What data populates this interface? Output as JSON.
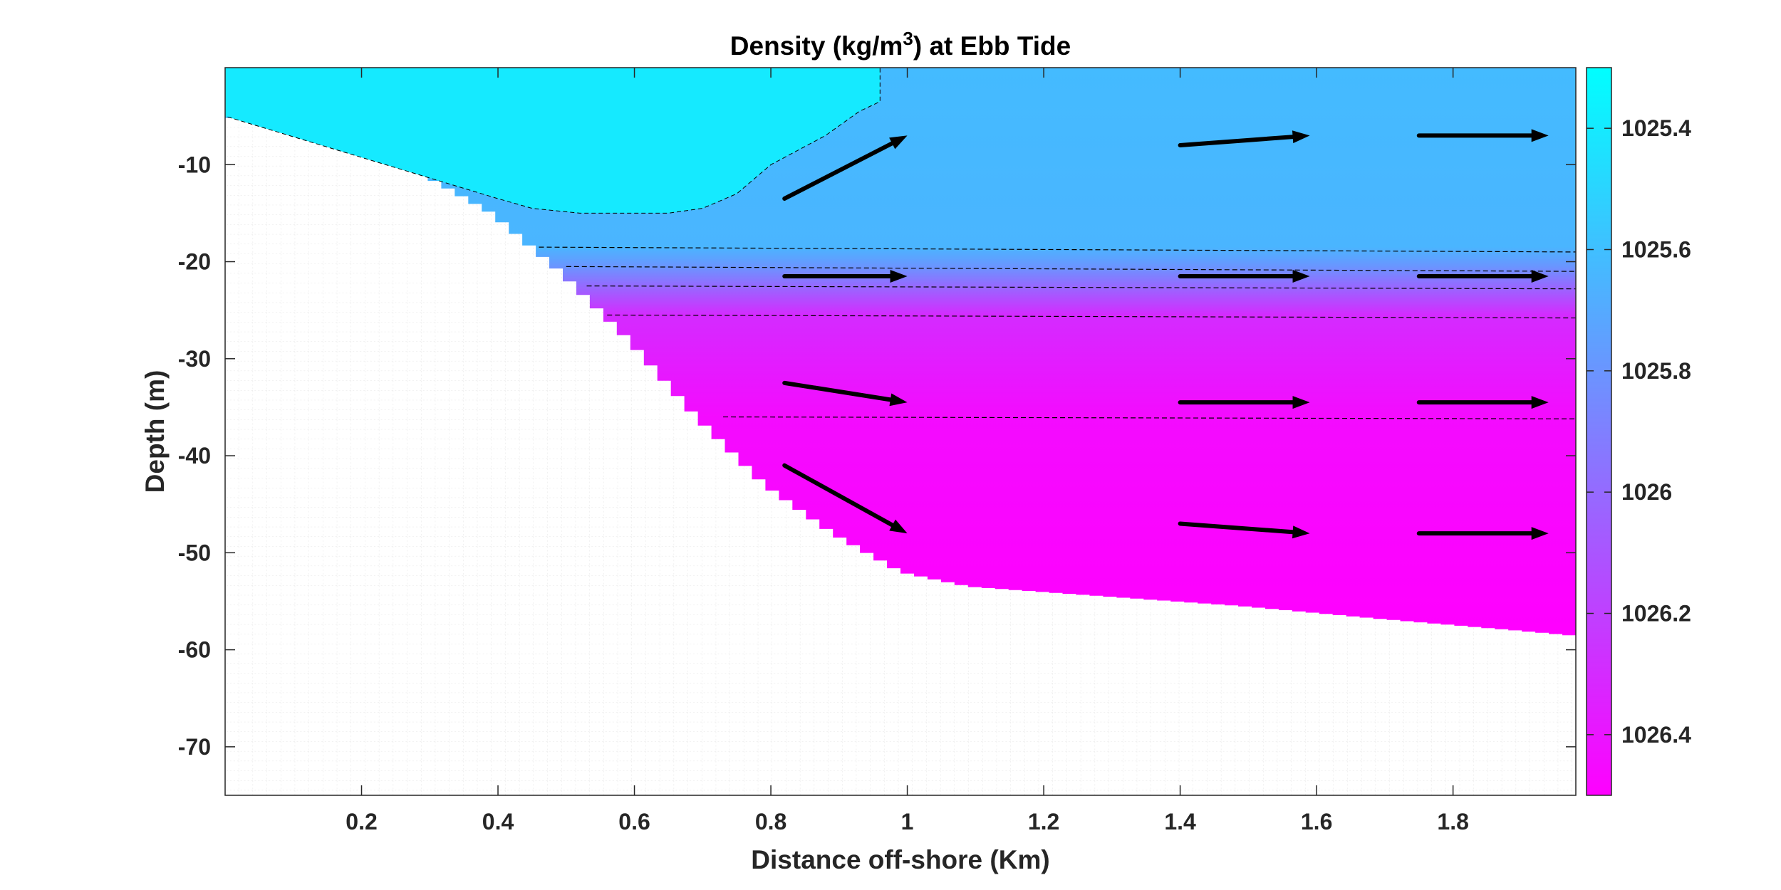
{
  "chart_data": {
    "type": "heatmap",
    "title": "Density (kg/m",
    "title_superscript": "3",
    "title_suffix": ") at Ebb Tide",
    "xlabel": "Distance off-shore (Km)",
    "ylabel": "Depth (m)",
    "xlim": [
      0,
      1.98
    ],
    "ylim": [
      -75,
      0
    ],
    "x_ticks": [
      0.2,
      0.4,
      0.6,
      0.8,
      1,
      1.2,
      1.4,
      1.6,
      1.8
    ],
    "x_tick_labels": [
      "0.2",
      "0.4",
      "0.6",
      "0.8",
      "1",
      "1.2",
      "1.4",
      "1.6",
      "1.8"
    ],
    "y_ticks": [
      -10,
      -20,
      -30,
      -40,
      -50,
      -60,
      -70
    ],
    "y_tick_labels": [
      "-10",
      "-20",
      "-30",
      "-40",
      "-50",
      "-60",
      "-70"
    ],
    "grid": "minor dotted",
    "colorbar": {
      "range": [
        1025.3,
        1026.5
      ],
      "ticks": [
        1025.4,
        1025.6,
        1025.8,
        1026,
        1026.2,
        1026.4
      ],
      "tick_labels": [
        "1025.4",
        "1025.6",
        "1025.8",
        "1026",
        "1026.2",
        "1026.4"
      ],
      "colormap": [
        "#00ffff",
        "#ff00ff"
      ]
    },
    "seafloor_depth": [
      {
        "x": 0.0,
        "depth": -5
      },
      {
        "x": 0.1,
        "depth": -6
      },
      {
        "x": 0.2,
        "depth": -8
      },
      {
        "x": 0.3,
        "depth": -11
      },
      {
        "x": 0.4,
        "depth": -15
      },
      {
        "x": 0.5,
        "depth": -21
      },
      {
        "x": 0.6,
        "depth": -28
      },
      {
        "x": 0.7,
        "depth": -36
      },
      {
        "x": 0.8,
        "depth": -43
      },
      {
        "x": 0.9,
        "depth": -48
      },
      {
        "x": 1.0,
        "depth": -52
      },
      {
        "x": 1.1,
        "depth": -53.5
      },
      {
        "x": 1.3,
        "depth": -54.5
      },
      {
        "x": 1.5,
        "depth": -55.5
      },
      {
        "x": 1.7,
        "depth": -56.8
      },
      {
        "x": 1.9,
        "depth": -58
      },
      {
        "x": 1.98,
        "depth": -58.5
      }
    ],
    "surface_water": {
      "density": 1025.4,
      "outline": [
        {
          "x": 0.0,
          "depth": 0
        },
        {
          "x": 0.96,
          "depth": 0
        },
        {
          "x": 0.96,
          "depth": -3.5
        },
        {
          "x": 0.93,
          "depth": -4.5
        },
        {
          "x": 0.88,
          "depth": -7
        },
        {
          "x": 0.8,
          "depth": -10
        },
        {
          "x": 0.75,
          "depth": -13
        },
        {
          "x": 0.7,
          "depth": -14.5
        },
        {
          "x": 0.65,
          "depth": -15
        },
        {
          "x": 0.52,
          "depth": -15
        },
        {
          "x": 0.45,
          "depth": -14.5
        },
        {
          "x": 0.4,
          "depth": -13.5
        }
      ]
    },
    "density_profile": [
      {
        "depth": -18.5,
        "density": 1025.65
      },
      {
        "depth": -20.5,
        "density": 1025.8
      },
      {
        "depth": -22.5,
        "density": 1026.0
      },
      {
        "depth": -25.5,
        "density": 1026.3
      },
      {
        "depth": -36,
        "density": 1026.45
      },
      {
        "depth": -58,
        "density": 1026.5
      }
    ],
    "contours": [
      {
        "depth_start": -18.5,
        "depth_end": -19,
        "x_start": 0.46
      },
      {
        "depth_start": -20.5,
        "depth_end": -21,
        "x_start": 0.5
      },
      {
        "depth_start": -22.5,
        "depth_end": -22.8,
        "x_start": 0.53
      },
      {
        "depth_start": -25.5,
        "depth_end": -25.8,
        "x_start": 0.56
      },
      {
        "depth_start": -36,
        "depth_end": -36.2,
        "x_start": 0.73
      }
    ],
    "velocity_arrows": [
      {
        "x0": 0.82,
        "y0": -13.5,
        "x1": 1.0,
        "y1": -7
      },
      {
        "x0": 1.4,
        "y0": -8,
        "x1": 1.59,
        "y1": -7
      },
      {
        "x0": 1.75,
        "y0": -7,
        "x1": 1.94,
        "y1": -7
      },
      {
        "x0": 0.82,
        "y0": -21.5,
        "x1": 1.0,
        "y1": -21.5
      },
      {
        "x0": 1.4,
        "y0": -21.5,
        "x1": 1.59,
        "y1": -21.5
      },
      {
        "x0": 1.75,
        "y0": -21.5,
        "x1": 1.94,
        "y1": -21.5
      },
      {
        "x0": 0.82,
        "y0": -32.5,
        "x1": 1.0,
        "y1": -34.5
      },
      {
        "x0": 1.4,
        "y0": -34.5,
        "x1": 1.59,
        "y1": -34.5
      },
      {
        "x0": 1.75,
        "y0": -34.5,
        "x1": 1.94,
        "y1": -34.5
      },
      {
        "x0": 0.82,
        "y0": -41,
        "x1": 1.0,
        "y1": -48
      },
      {
        "x0": 1.4,
        "y0": -47,
        "x1": 1.59,
        "y1": -48
      },
      {
        "x0": 1.75,
        "y0": -48,
        "x1": 1.94,
        "y1": -48
      }
    ]
  }
}
